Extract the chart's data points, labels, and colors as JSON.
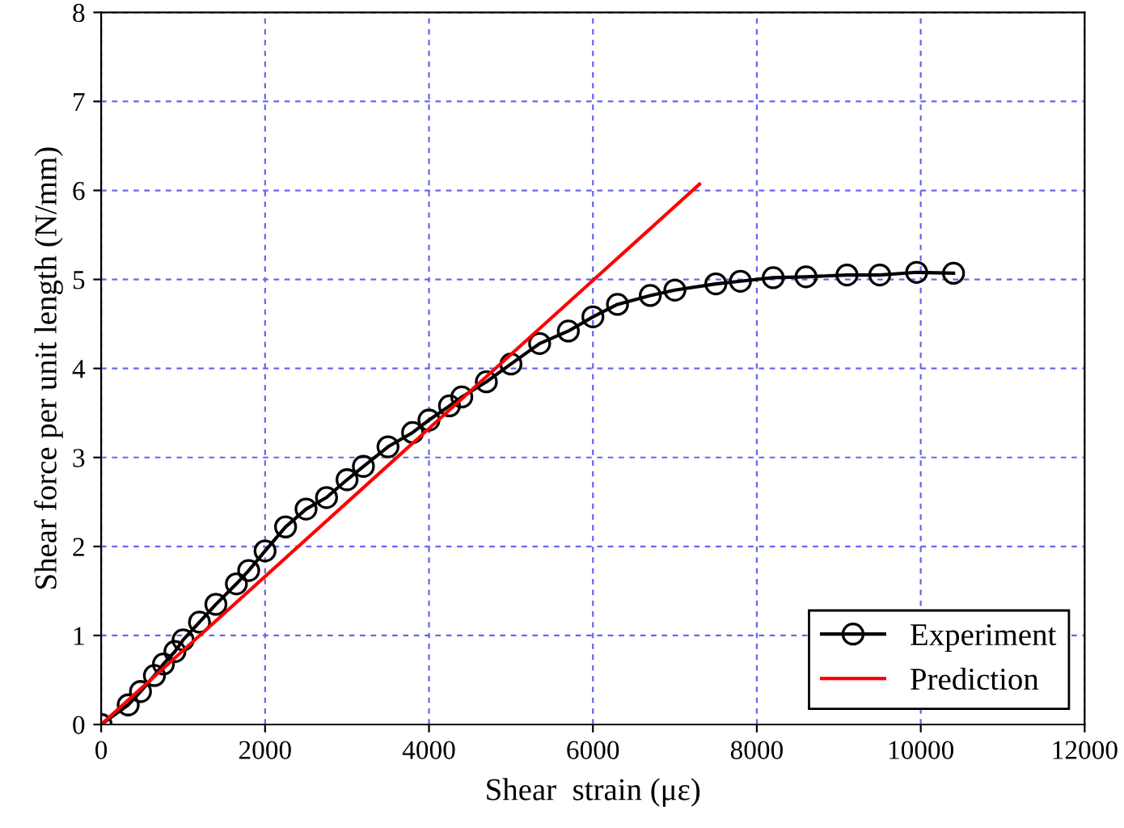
{
  "chart_data": {
    "type": "line",
    "xlabel": "Shear  strain (με)",
    "ylabel": "Shear force per unit length (N/mm)",
    "series": [
      {
        "name": "Experiment",
        "color": "#000000",
        "marker": "circle",
        "x": [
          0,
          330,
          480,
          650,
          760,
          900,
          1000,
          1200,
          1400,
          1650,
          1800,
          2000,
          2250,
          2500,
          2750,
          3000,
          3200,
          3500,
          3800,
          4000,
          4250,
          4400,
          4700,
          5000,
          5350,
          5700,
          6000,
          6300,
          6700,
          7000,
          7500,
          7800,
          8200,
          8600,
          9100,
          9500,
          9950,
          10400
        ],
        "values": [
          0,
          0.22,
          0.37,
          0.55,
          0.68,
          0.82,
          0.95,
          1.15,
          1.35,
          1.58,
          1.73,
          1.95,
          2.22,
          2.42,
          2.55,
          2.75,
          2.9,
          3.12,
          3.28,
          3.42,
          3.58,
          3.68,
          3.85,
          4.05,
          4.28,
          4.42,
          4.58,
          4.72,
          4.82,
          4.88,
          4.95,
          4.98,
          5.02,
          5.03,
          5.05,
          5.05,
          5.08,
          5.07
        ]
      },
      {
        "name": "Prediction",
        "color": "#ff0000",
        "x": [
          0,
          7300
        ],
        "values": [
          0,
          6.07
        ]
      }
    ],
    "xlim": [
      0,
      12000
    ],
    "xticks": [
      0,
      2000,
      4000,
      6000,
      8000,
      10000,
      12000
    ],
    "ylim": [
      0,
      8
    ],
    "yticks": [
      0,
      1,
      2,
      3,
      4,
      5,
      6,
      7,
      8
    ],
    "grid": true,
    "legend": "bottom right",
    "line_style": "solid"
  }
}
